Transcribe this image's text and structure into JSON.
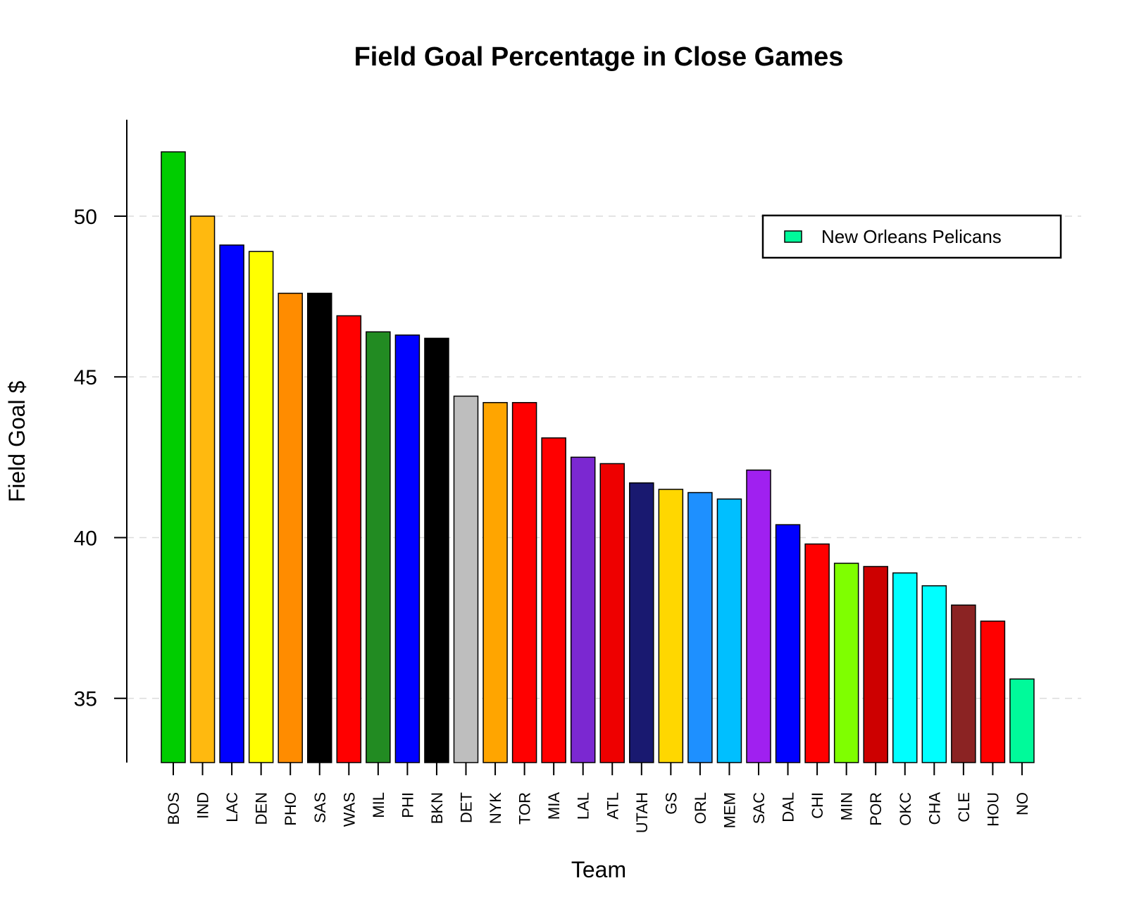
{
  "chart_data": {
    "type": "bar",
    "title": "Field Goal Percentage in Close Games",
    "xlabel": "Team",
    "ylabel": "Field Goal $",
    "ylim": [
      33,
      53
    ],
    "yticks": [
      35,
      40,
      45,
      50
    ],
    "grid": true,
    "legend": {
      "position": "top-right",
      "entries": [
        {
          "label": "New Orleans Pelicans",
          "color": "#00FA9A"
        }
      ]
    },
    "categories": [
      "BOS",
      "IND",
      "LAC",
      "DEN",
      "PHO",
      "SAS",
      "WAS",
      "MIL",
      "PHI",
      "BKN",
      "DET",
      "NYK",
      "TOR",
      "MIA",
      "LAL",
      "ATL",
      "UTAH",
      "GS",
      "ORL",
      "MEM",
      "SAC",
      "DAL",
      "CHI",
      "MIN",
      "POR",
      "OKC",
      "CHA",
      "CLE",
      "HOU",
      "NO"
    ],
    "values": [
      52.0,
      50.0,
      49.1,
      48.9,
      47.6,
      47.6,
      46.9,
      46.4,
      46.3,
      46.2,
      44.4,
      44.2,
      44.2,
      43.1,
      42.5,
      42.3,
      41.7,
      41.5,
      41.4,
      41.2,
      42.1,
      40.4,
      39.8,
      39.2,
      39.1,
      38.9,
      38.5,
      37.9,
      37.4,
      35.6
    ],
    "colors": [
      "#00CD00",
      "#FFB90F",
      "#0000FF",
      "#FFFF00",
      "#FF8C00",
      "#000000",
      "#FF0000",
      "#228B22",
      "#0000FF",
      "#000000",
      "#BEBEBE",
      "#FFA500",
      "#FF0000",
      "#FF0000",
      "#7B28D1",
      "#EE0000",
      "#191970",
      "#FFD700",
      "#1E90FF",
      "#00BFFF",
      "#A020F0",
      "#0000FF",
      "#FF0000",
      "#7FFF00",
      "#CD0000",
      "#00FFFF",
      "#00FFFF",
      "#8B2323",
      "#FF0000",
      "#00FA9A"
    ]
  }
}
